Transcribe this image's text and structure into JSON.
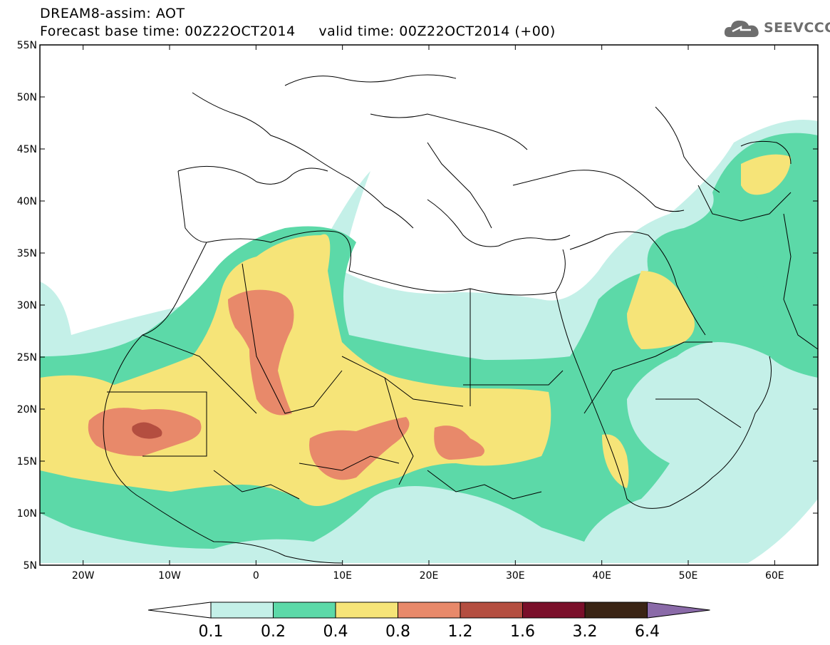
{
  "header": {
    "title_line1": "DREAM8-assim: AOT",
    "title_line2": "Forecast base time: 00Z22OCT2014     valid time: 00Z22OCT2014 (+00)",
    "logo_text": "SEEVCCC",
    "logo_icon": "cloud-icon"
  },
  "map": {
    "lon_range": [
      -25,
      65
    ],
    "lat_range": [
      5,
      55
    ],
    "lon_ticks": [
      {
        "value": -20,
        "label": "20W"
      },
      {
        "value": -10,
        "label": "10W"
      },
      {
        "value": 0,
        "label": "0"
      },
      {
        "value": 10,
        "label": "10E"
      },
      {
        "value": 20,
        "label": "20E"
      },
      {
        "value": 30,
        "label": "30E"
      },
      {
        "value": 40,
        "label": "40E"
      },
      {
        "value": 50,
        "label": "50E"
      },
      {
        "value": 60,
        "label": "60E"
      }
    ],
    "lat_ticks": [
      {
        "value": 55,
        "label": "55N"
      },
      {
        "value": 50,
        "label": "50N"
      },
      {
        "value": 45,
        "label": "45N"
      },
      {
        "value": 40,
        "label": "40N"
      },
      {
        "value": 35,
        "label": "35N"
      },
      {
        "value": 30,
        "label": "30N"
      },
      {
        "value": 25,
        "label": "25N"
      },
      {
        "value": 20,
        "label": "20N"
      },
      {
        "value": 15,
        "label": "15N"
      },
      {
        "value": 10,
        "label": "10N"
      },
      {
        "value": 5,
        "label": "5N"
      }
    ]
  },
  "legend": {
    "levels": [
      "0.1",
      "0.2",
      "0.4",
      "0.8",
      "1.2",
      "1.6",
      "3.2",
      "6.4"
    ],
    "colors": [
      "#ffffff",
      "#c4f0e8",
      "#5cd9a8",
      "#f6e478",
      "#e8896a",
      "#b44e40",
      "#7a0f2a",
      "#3a2414",
      "#8a6aa8"
    ]
  },
  "field_colors": {
    "light": "#c4f0e8",
    "green": "#5cd9a8",
    "yellow": "#f6e478",
    "orange": "#e8896a",
    "red": "#b44e40"
  }
}
